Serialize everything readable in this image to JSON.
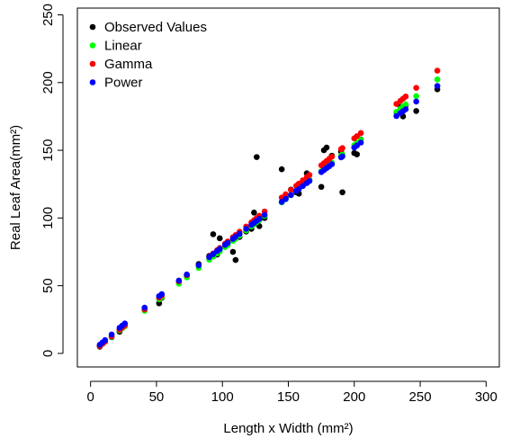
{
  "chart_data": {
    "type": "scatter",
    "xlabel": "Length x Width (mm²)",
    "ylabel": "Real Leaf Area(mm²)",
    "xlim": [
      -10,
      310
    ],
    "ylim": [
      -10,
      255
    ],
    "xticks": [
      0,
      50,
      100,
      150,
      200,
      250,
      300
    ],
    "yticks": [
      0,
      50,
      100,
      150,
      200,
      250
    ],
    "legend_position": "top-left",
    "x": [
      7,
      9,
      11,
      16,
      22,
      24,
      26,
      41,
      52,
      54,
      67,
      73,
      82,
      90,
      93,
      96,
      98,
      102,
      104,
      108,
      110,
      113,
      118,
      122,
      124,
      126,
      128,
      132,
      145,
      148,
      152,
      156,
      158,
      161,
      164,
      166,
      175,
      177,
      179,
      181,
      183,
      190,
      191,
      200,
      202,
      205,
      232,
      235,
      237,
      239,
      247,
      263
    ],
    "series": [
      {
        "name": "Observed Values",
        "color": "#000000",
        "values": [
          5,
          7,
          9,
          12,
          16,
          19,
          21,
          33,
          37,
          41,
          53,
          57,
          66,
          72,
          88,
          73,
          85,
          79,
          82,
          75,
          69,
          86,
          90,
          92,
          104,
          145,
          94,
          100,
          136,
          115,
          121,
          119,
          118,
          126,
          133,
          128,
          123,
          150,
          152,
          139,
          146,
          149,
          119,
          148,
          147,
          158,
          178,
          182,
          175,
          183,
          179,
          195
        ]
      },
      {
        "name": "Linear",
        "color": "#00ff00",
        "values": [
          5.5,
          7,
          8.5,
          12.3,
          17,
          18.5,
          20,
          31.5,
          40,
          41.5,
          51.5,
          56.1,
          63.1,
          69.2,
          71.5,
          73.8,
          75.4,
          78.5,
          80,
          83.1,
          84.6,
          86.9,
          90.8,
          93.8,
          95.4,
          96.9,
          98.4,
          101.5,
          111.5,
          113.8,
          116.9,
          120,
          121.5,
          123.8,
          126.1,
          127.7,
          134.6,
          136.1,
          137.7,
          139.2,
          140.8,
          146.1,
          146.9,
          153.8,
          155.4,
          157.7,
          178.4,
          180.7,
          182.3,
          183.8,
          190,
          202.3
        ]
      },
      {
        "name": "Gamma",
        "color": "#ff0000",
        "values": [
          5.5,
          7.1,
          8.7,
          12.7,
          17.5,
          19.1,
          20.7,
          32.5,
          41.2,
          42.8,
          53.2,
          57.9,
          65.1,
          71.4,
          73.8,
          76.2,
          77.8,
          81,
          82.6,
          85.8,
          87.4,
          89.8,
          93.7,
          96.8,
          98.4,
          100,
          101.6,
          104.8,
          115.1,
          117.5,
          120.7,
          123.8,
          125.4,
          127.8,
          130.2,
          131.8,
          138.9,
          140.5,
          142.1,
          143.7,
          145.3,
          150.8,
          151.6,
          158.8,
          160.4,
          162.7,
          184.2,
          186.5,
          188.1,
          189.7,
          196.1,
          208.8
        ]
      },
      {
        "name": "Power",
        "color": "#0000ff",
        "values": [
          6.4,
          8.1,
          9.8,
          14,
          18.9,
          20.5,
          22.1,
          33.8,
          42.3,
          43.8,
          53.8,
          58.3,
          65.1,
          71.1,
          73.3,
          75.6,
          77.1,
          80.1,
          81.6,
          84.6,
          86.1,
          88.3,
          92,
          94.9,
          96.4,
          97.9,
          99.4,
          102.3,
          111.9,
          114.1,
          117,
          120,
          121.4,
          123.6,
          125.8,
          127.3,
          133.9,
          135.3,
          136.8,
          138.2,
          139.7,
          144.8,
          145.5,
          152,
          153.5,
          155.7,
          175.3,
          177.5,
          178.9,
          180.3,
          186,
          197.5
        ]
      }
    ]
  }
}
